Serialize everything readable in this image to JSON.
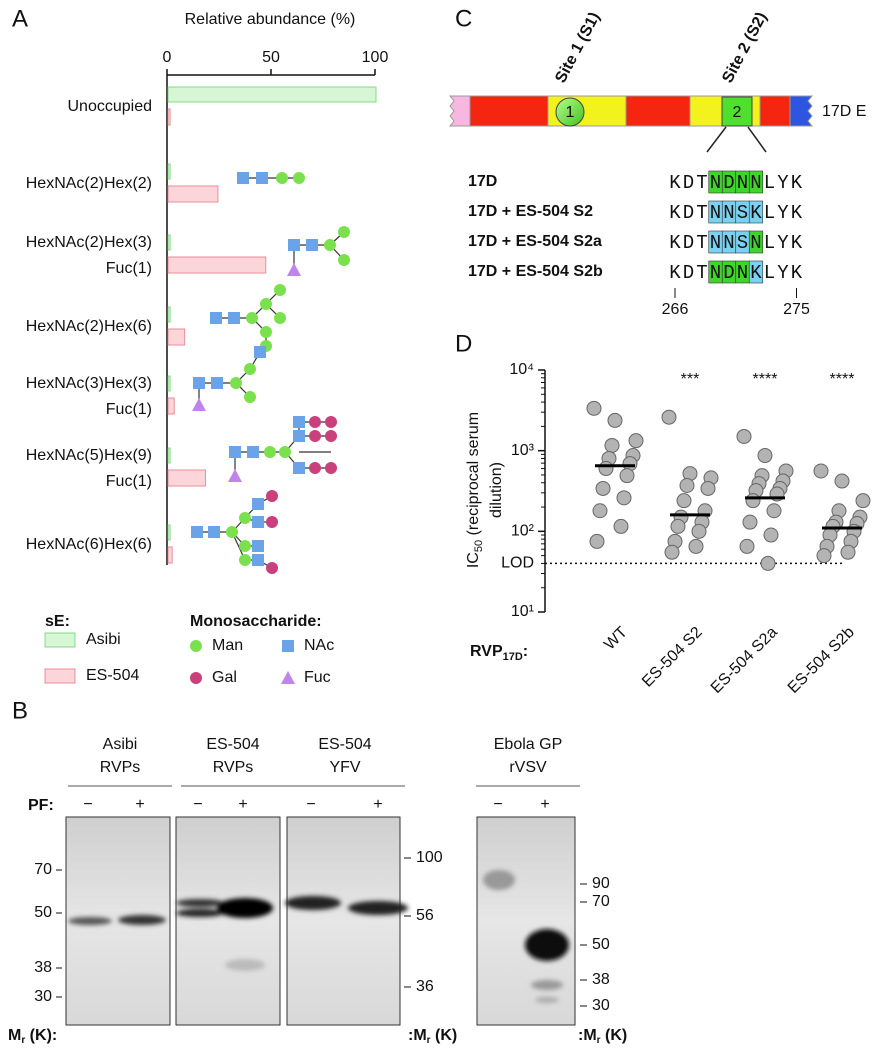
{
  "panel_labels": [
    "A",
    "B",
    "C",
    "D"
  ],
  "chart_data": [
    {
      "type": "bar",
      "orientation": "horizontal",
      "title": "Relative abundance (%)",
      "categories": [
        [
          "Unoccupied"
        ],
        [
          "HexNAc(2)Hex(2)"
        ],
        [
          "HexNAc(2)Hex(3)",
          "Fuc(1)"
        ],
        [
          "HexNAc(2)Hex(6)"
        ],
        [
          "HexNAc(3)Hex(3)",
          "Fuc(1)"
        ],
        [
          "HexNAc(5)Hex(9)",
          "Fuc(1)"
        ],
        [
          "HexNAc(6)Hex(6)"
        ]
      ],
      "series": [
        {
          "name": "Asibi",
          "color": "#d6f6d6",
          "edge": "#86d886",
          "values": [
            100,
            1,
            1,
            1,
            1,
            1,
            1
          ]
        },
        {
          "name": "ES-504",
          "color": "#fbd5da",
          "edge": "#e98e98",
          "values": [
            1,
            24,
            47,
            8,
            3,
            18,
            2
          ]
        }
      ],
      "xlim": [
        0,
        100
      ],
      "xticks": [
        0,
        50,
        100
      ],
      "legend_title": "sE:",
      "monosaccharide_title": "Monosaccharide:",
      "monosaccharides": [
        {
          "name": "Man",
          "color": "#7be04e",
          "shape": "circle"
        },
        {
          "name": "NAc",
          "color": "#6aa3e8",
          "shape": "square"
        },
        {
          "name": "Gal",
          "color": "#c9407c",
          "shape": "circle"
        },
        {
          "name": "Fuc",
          "color": "#c184ec",
          "shape": "triangle"
        }
      ]
    },
    {
      "type": "scatter",
      "log_scale": true,
      "categories": [
        "WT",
        "ES-504 S2",
        "ES-504 S2a",
        "ES-504 S2b"
      ],
      "values": [
        [
          3350,
          2370,
          1330,
          1160,
          870,
          800,
          690,
          600,
          490,
          340,
          260,
          180,
          115,
          75
        ],
        [
          2600,
          520,
          460,
          370,
          340,
          240,
          180,
          150,
          130,
          115,
          100,
          75,
          65,
          55
        ],
        [
          1500,
          870,
          560,
          490,
          420,
          390,
          340,
          320,
          290,
          240,
          180,
          130,
          90,
          65,
          40
        ],
        [
          560,
          420,
          240,
          180,
          150,
          130,
          125,
          115,
          100,
          90,
          75,
          65,
          55,
          50
        ]
      ],
      "medians": [
        650,
        160,
        260,
        110
      ],
      "annotations": [
        null,
        "***",
        "****",
        "****"
      ],
      "color": "#b3b3b3",
      "ylim": [
        10,
        10000
      ],
      "yticks": [
        {
          "value": 10,
          "label": "10¹"
        },
        {
          "value": 100,
          "label": "10²"
        },
        {
          "value": 1000,
          "label": "10³"
        },
        {
          "value": 10000,
          "label": "10⁴"
        }
      ],
      "reference_line": {
        "value": 40,
        "label": "LOD"
      },
      "ylabel": [
        "IC",
        "50",
        " (reciprocal serum",
        "dilution)"
      ],
      "xlabel": [
        "RVP",
        "17D",
        ":"
      ]
    }
  ],
  "diagram": {
    "sites": [
      {
        "label": "Site 1 (S1)",
        "number": 1
      },
      {
        "label": "Site 2 (S2)",
        "number": 2
      }
    ],
    "protein_label": "17D E",
    "rows": [
      {
        "name": "17D",
        "residues": [
          "K",
          "D",
          "T",
          "N",
          "D",
          "N",
          "N",
          "L",
          "Y",
          "K"
        ],
        "highlight": [
          null,
          null,
          null,
          "#3fd62a",
          "#3fd62a",
          "#3fd62a",
          "#3fd62a",
          null,
          null,
          null
        ]
      },
      {
        "name": "17D + ES-504 S2",
        "residues": [
          "K",
          "D",
          "T",
          "N",
          "N",
          "S",
          "K",
          "L",
          "Y",
          "K"
        ],
        "highlight": [
          null,
          null,
          null,
          "#79d2f2",
          "#79d2f2",
          "#79d2f2",
          "#79d2f2",
          null,
          null,
          null
        ]
      },
      {
        "name": "17D + ES-504 S2a",
        "residues": [
          "K",
          "D",
          "T",
          "N",
          "N",
          "S",
          "N",
          "L",
          "Y",
          "K"
        ],
        "highlight": [
          null,
          null,
          null,
          "#79d2f2",
          "#79d2f2",
          "#79d2f2",
          "#3fd62a",
          null,
          null,
          null
        ]
      },
      {
        "name": "17D + ES-504 S2b",
        "residues": [
          "K",
          "D",
          "T",
          "N",
          "D",
          "N",
          "K",
          "L",
          "Y",
          "K"
        ],
        "highlight": [
          null,
          null,
          null,
          "#3fd62a",
          "#3fd62a",
          "#3fd62a",
          "#79d2f2",
          null,
          null,
          null
        ]
      }
    ],
    "positions": [
      266,
      275
    ]
  },
  "blot": {
    "groups": [
      [
        "Asibi",
        "RVPs"
      ],
      [
        "ES-504",
        "RVPs"
      ],
      [
        "ES-504",
        "YFV"
      ],
      [
        "Ebola GP",
        "rVSV"
      ]
    ],
    "pf_label": "PF:",
    "minus": "−",
    "plus": "+",
    "markers_left": [
      70,
      50,
      38,
      30
    ],
    "markers_yfv": [
      100,
      56,
      36
    ],
    "markers_ebola": [
      90,
      70,
      50,
      38,
      30
    ],
    "mr": [
      "M",
      "r",
      " (K)"
    ],
    "colon": ":"
  }
}
